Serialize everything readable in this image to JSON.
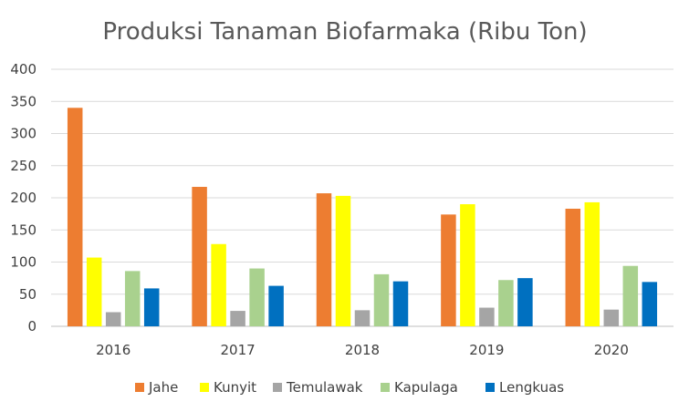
{
  "chart_data": {
    "type": "bar",
    "title": "Produksi Tanaman Biofarmaka (Ribu Ton)",
    "xlabel": "",
    "ylabel": "",
    "categories": [
      "2016",
      "2017",
      "2018",
      "2019",
      "2020"
    ],
    "ylim": [
      0,
      400
    ],
    "yticks": [
      0,
      50,
      100,
      150,
      200,
      250,
      300,
      350,
      400
    ],
    "grid": true,
    "legend_position": "bottom",
    "series": [
      {
        "name": "Jahe",
        "color": "#ED7D31",
        "values": [
          340,
          217,
          207,
          174,
          183
        ]
      },
      {
        "name": "Kunyit",
        "color": "#FFFF00",
        "values": [
          107,
          128,
          203,
          190,
          193
        ]
      },
      {
        "name": "Temulawak",
        "color": "#A5A5A5",
        "values": [
          22,
          24,
          25,
          29,
          26
        ]
      },
      {
        "name": "Kapulaga",
        "color": "#A9D18E",
        "values": [
          86,
          90,
          81,
          72,
          94
        ]
      },
      {
        "name": "Lengkuas",
        "color": "#0070C0",
        "values": [
          59,
          63,
          70,
          75,
          69
        ]
      }
    ]
  }
}
